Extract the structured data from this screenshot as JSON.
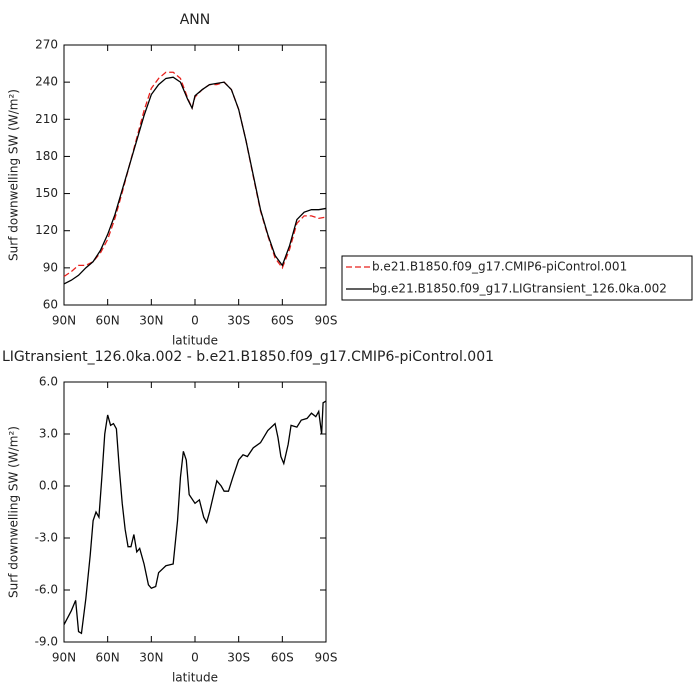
{
  "chart_data": [
    {
      "type": "line",
      "title": "ANN",
      "xlabel": "latitude",
      "ylabel": "Surf downwelling SW (W/m²)",
      "x": [
        90,
        85,
        80,
        75,
        70,
        65,
        60,
        55,
        50,
        45,
        40,
        35,
        30,
        25,
        20,
        15,
        10,
        5,
        2,
        0,
        -5,
        -10,
        -15,
        -20,
        -25,
        -30,
        -35,
        -40,
        -45,
        -50,
        -55,
        -60,
        -65,
        -70,
        -75,
        -80,
        -85,
        -90
      ],
      "series": [
        {
          "name": "b.e21.B1850.f09_g17.CMIP6-piControl.001",
          "color": "#e8201c",
          "line_style": "dashed",
          "values": [
            83,
            87,
            92,
            92,
            95,
            102,
            113,
            130,
            151,
            173,
            195,
            217,
            235,
            243,
            248,
            248,
            243,
            227,
            219,
            228,
            234,
            238,
            238,
            240,
            234,
            218,
            193,
            164,
            136,
            116,
            98,
            90,
            105,
            126,
            132,
            132,
            130,
            131
          ]
        },
        {
          "name": "bg.e21.B1850.f09_g17.LIGtransient_126.0ka.002",
          "color": "#000000",
          "line_style": "solid",
          "values": [
            77,
            80,
            84,
            90,
            95,
            104,
            117,
            133,
            153,
            173,
            193,
            213,
            230,
            238,
            243,
            244,
            240,
            226,
            219,
            229,
            234,
            238,
            239,
            240,
            234,
            218,
            193,
            165,
            137,
            117,
            100,
            92,
            108,
            129,
            135,
            137,
            137,
            138
          ]
        }
      ],
      "xlim": [
        90,
        -90
      ],
      "xticks": [
        {
          "value": 90,
          "label": "90N"
        },
        {
          "value": 60,
          "label": "60N"
        },
        {
          "value": 30,
          "label": "30N"
        },
        0,
        {
          "value": -30,
          "label": "30S"
        },
        {
          "value": -60,
          "label": "60S"
        },
        {
          "value": -90,
          "label": "90S"
        }
      ],
      "ylim": [
        60,
        270
      ],
      "yticks": [
        60,
        90,
        120,
        150,
        180,
        210,
        240,
        270
      ],
      "legend": "right"
    },
    {
      "type": "line",
      "title": "LIGtransient_126.0ka.002 - b.e21.B1850.f09_g17.CMIP6-piControl.001",
      "xlabel": "latitude",
      "ylabel": "Surf downwelling SW (W/m²)",
      "x": [
        90,
        85,
        82,
        80,
        78,
        75,
        72,
        70,
        68,
        66,
        64,
        62,
        60,
        58,
        56,
        54,
        52,
        50,
        48,
        46,
        44,
        42,
        40,
        38,
        35,
        32,
        30,
        27,
        25,
        20,
        15,
        12,
        10,
        8,
        6,
        4,
        0,
        -3,
        -6,
        -8,
        -10,
        -15,
        -18,
        -20,
        -23,
        -26,
        -30,
        -33,
        -36,
        -40,
        -45,
        -50,
        -55,
        -57,
        -59,
        -61,
        -64,
        -66,
        -70,
        -73,
        -77,
        -80,
        -83,
        -85,
        -87,
        -88,
        -90
      ],
      "series": [
        {
          "color": "#000000",
          "line_style": "solid",
          "values": [
            -8.0,
            -7.2,
            -6.6,
            -8.4,
            -8.5,
            -6.5,
            -4.0,
            -2.0,
            -1.5,
            -1.8,
            0.5,
            3.0,
            4.1,
            3.5,
            3.6,
            3.3,
            1.0,
            -1.0,
            -2.5,
            -3.5,
            -3.5,
            -2.8,
            -3.8,
            -3.6,
            -4.5,
            -5.7,
            -5.9,
            -5.8,
            -5.0,
            -4.6,
            -4.5,
            -2.0,
            0.5,
            2.0,
            1.5,
            -0.5,
            -1.0,
            -0.8,
            -1.8,
            -2.1,
            -1.5,
            0.3,
            0.0,
            -0.3,
            -0.3,
            0.5,
            1.5,
            1.8,
            1.7,
            2.2,
            2.5,
            3.2,
            3.6,
            2.8,
            1.7,
            1.3,
            2.4,
            3.5,
            3.4,
            3.8,
            3.9,
            4.2,
            4.0,
            4.3,
            3.0,
            4.8,
            4.9
          ]
        }
      ],
      "xlim": [
        90,
        -90
      ],
      "xticks": [
        {
          "value": 90,
          "label": "90N"
        },
        {
          "value": 60,
          "label": "60N"
        },
        {
          "value": 30,
          "label": "30N"
        },
        0,
        {
          "value": -30,
          "label": "30S"
        },
        {
          "value": -60,
          "label": "60S"
        },
        {
          "value": -90,
          "label": "90S"
        }
      ],
      "ylim": [
        -9,
        6
      ],
      "yticks": [
        {
          "value": -9,
          "label": "-9.0"
        },
        {
          "value": -6,
          "label": "-6.0"
        },
        {
          "value": -3,
          "label": "-3.0"
        },
        {
          "value": 0,
          "label": "0.0"
        },
        {
          "value": 3,
          "label": "3.0"
        },
        {
          "value": 6,
          "label": "6.0"
        }
      ]
    }
  ]
}
